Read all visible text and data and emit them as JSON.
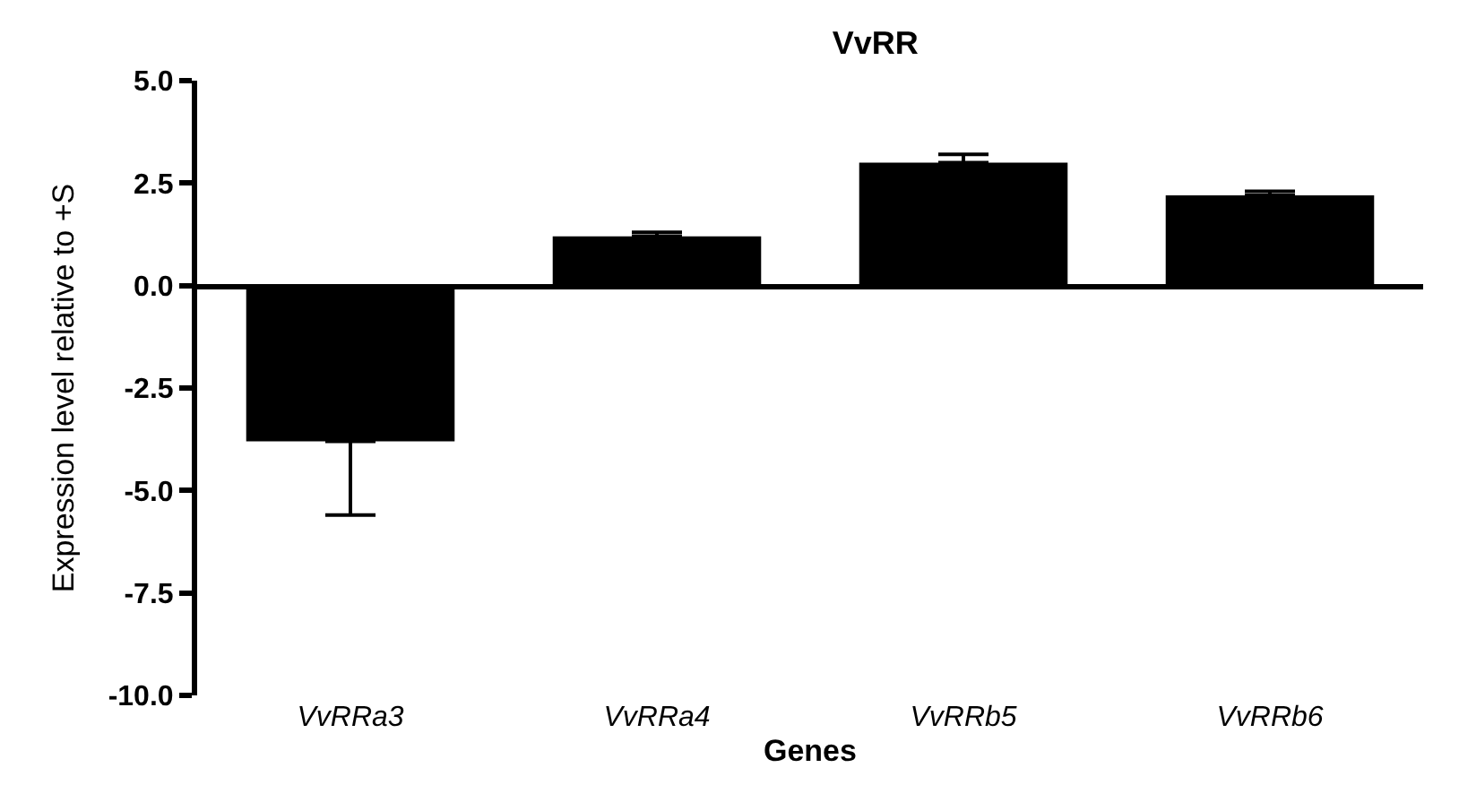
{
  "chart_data": {
    "type": "bar",
    "title": "VvRR",
    "xlabel": "Genes",
    "ylabel": "Expression level relative to +S",
    "categories": [
      "VvRRa3",
      "VvRRa4",
      "VvRRb5",
      "VvRRb6"
    ],
    "values": [
      -3.8,
      1.2,
      3.0,
      2.2
    ],
    "errors": [
      [
        -5.6,
        -3.8
      ],
      [
        1.2,
        1.3
      ],
      [
        3.0,
        3.2
      ],
      [
        2.2,
        2.3
      ]
    ],
    "color": "#000000",
    "ylim": [
      -10.0,
      5.0
    ],
    "yticks": [
      {
        "value": -10,
        "label": "-10.0"
      },
      {
        "value": -7.5,
        "label": "-7.5"
      },
      {
        "value": -5,
        "label": "-5.0"
      },
      {
        "value": -2.5,
        "label": "-2.5"
      },
      {
        "value": 0,
        "label": "0.0"
      },
      {
        "value": 2.5,
        "label": "2.5"
      },
      {
        "value": 5,
        "label": "5.0"
      }
    ],
    "legend": false
  }
}
